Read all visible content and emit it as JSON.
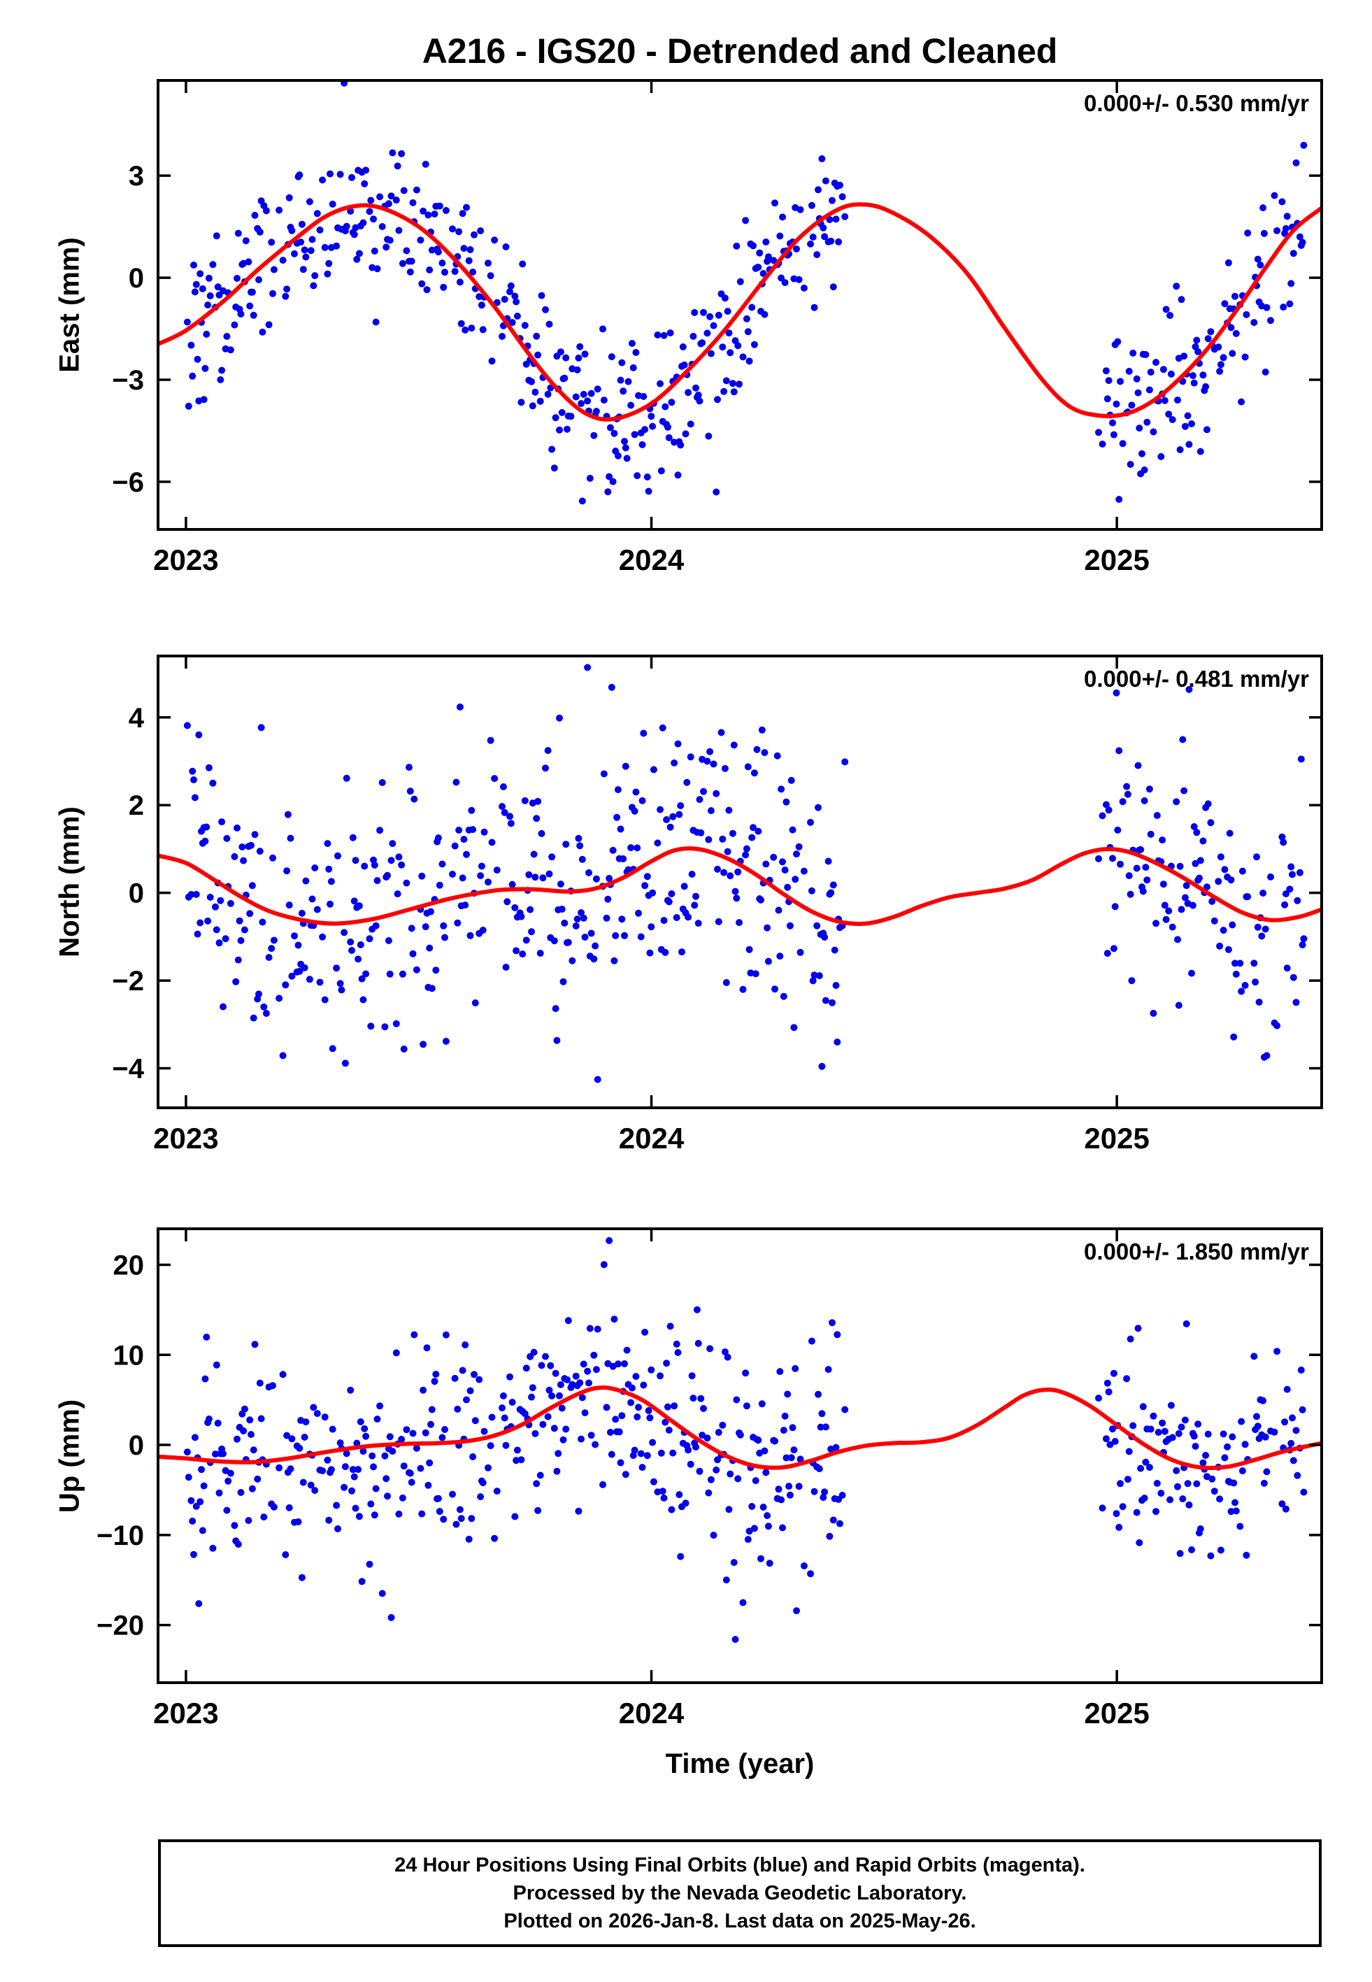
{
  "title": "A216 - IGS20 - Detrended and Cleaned",
  "xlabel": "Time (year)",
  "footer": {
    "line1": "24 Hour Positions Using Final Orbits (blue) and Rapid Orbits (magenta).",
    "line2": "Processed by the Nevada Geodetic Laboratory.",
    "line3": "Plotted on 2026-Jan-8. Last data on 2025-May-26."
  },
  "colors": {
    "points": "#0000ee",
    "curve": "#ff0000",
    "frame": "#000000",
    "background": "#ffffff"
  },
  "data_coverage": {
    "segments": [
      [
        2023.003,
        2024.42
      ],
      [
        2024.958,
        2025.402
      ]
    ],
    "step_days": 1,
    "keep_probability": 0.78,
    "seed": 7
  },
  "chart_data": [
    {
      "type": "scatter",
      "id": "east",
      "ylabel": "East (mm)",
      "annotation": "0.000+/- 0.530 mm/yr",
      "rate_mm_yr": 0.0,
      "rate_sigma_mm_yr": 0.53,
      "xlim": [
        2022.94,
        2025.44
      ],
      "ylim": [
        -7.4,
        5.8
      ],
      "xticks": [
        2023,
        2024,
        2025
      ],
      "yticks": [
        -6,
        -3,
        0,
        3
      ],
      "trend_curve": {
        "x": [
          2022.94,
          2023.0,
          2023.08,
          2023.16,
          2023.24,
          2023.3,
          2023.36,
          2023.42,
          2023.5,
          2023.58,
          2023.66,
          2023.74,
          2023.8,
          2023.86,
          2023.92,
          2024.0,
          2024.08,
          2024.16,
          2024.24,
          2024.32,
          2024.4,
          2024.46,
          2024.52,
          2024.6,
          2024.68,
          2024.76,
          2024.84,
          2024.9,
          2024.96,
          2025.02,
          2025.08,
          2025.14,
          2025.2,
          2025.26,
          2025.32,
          2025.38,
          2025.44
        ],
        "y": [
          -1.95,
          -1.55,
          -0.7,
          0.3,
          1.2,
          1.8,
          2.1,
          2.05,
          1.5,
          0.5,
          -0.8,
          -2.3,
          -3.3,
          -4.0,
          -4.15,
          -3.7,
          -2.7,
          -1.5,
          -0.1,
          1.2,
          2.0,
          2.15,
          1.9,
          1.2,
          0.1,
          -1.5,
          -3.0,
          -3.8,
          -4.05,
          -4.0,
          -3.6,
          -2.9,
          -2.0,
          -0.9,
          0.3,
          1.4,
          2.05
        ]
      },
      "scatter": {
        "sigma": 1.15,
        "seed": 101,
        "outlier_probability": 0.02,
        "outlier_scale": 1.9
      }
    },
    {
      "type": "scatter",
      "id": "north",
      "ylabel": "North (mm)",
      "annotation": "0.000+/- 0.481 mm/yr",
      "rate_mm_yr": 0.0,
      "rate_sigma_mm_yr": 0.481,
      "xlim": [
        2022.94,
        2025.44
      ],
      "ylim": [
        -4.9,
        5.4
      ],
      "xticks": [
        2023,
        2024,
        2025
      ],
      "yticks": [
        -4,
        -2,
        0,
        2,
        4
      ],
      "trend_curve": {
        "x": [
          2022.94,
          2023.0,
          2023.06,
          2023.12,
          2023.18,
          2023.25,
          2023.32,
          2023.4,
          2023.48,
          2023.56,
          2023.62,
          2023.68,
          2023.75,
          2023.82,
          2023.88,
          2023.94,
          2024.0,
          2024.05,
          2024.1,
          2024.16,
          2024.22,
          2024.28,
          2024.34,
          2024.4,
          2024.46,
          2024.52,
          2024.58,
          2024.64,
          2024.7,
          2024.76,
          2024.82,
          2024.88,
          2024.93,
          2024.98,
          2025.03,
          2025.09,
          2025.15,
          2025.21,
          2025.27,
          2025.33,
          2025.39,
          2025.44
        ],
        "y": [
          0.85,
          0.68,
          0.3,
          -0.1,
          -0.42,
          -0.62,
          -0.7,
          -0.6,
          -0.38,
          -0.15,
          -0.02,
          0.07,
          0.08,
          0.03,
          0.1,
          0.35,
          0.72,
          0.97,
          1.0,
          0.8,
          0.45,
          0.0,
          -0.4,
          -0.65,
          -0.7,
          -0.55,
          -0.3,
          -0.1,
          0.0,
          0.1,
          0.3,
          0.65,
          0.9,
          1.0,
          0.92,
          0.65,
          0.3,
          -0.1,
          -0.45,
          -0.62,
          -0.55,
          -0.38
        ]
      },
      "scatter": {
        "sigma": 1.6,
        "seed": 202,
        "outlier_probability": 0.02,
        "outlier_scale": 1.9
      }
    },
    {
      "type": "scatter",
      "id": "up",
      "ylabel": "Up (mm)",
      "annotation": "0.000+/- 1.850 mm/yr",
      "rate_mm_yr": 0.0,
      "rate_sigma_mm_yr": 1.85,
      "xlim": [
        2022.94,
        2025.44
      ],
      "ylim": [
        -26.4,
        24.0
      ],
      "xticks": [
        2023,
        2024,
        2025
      ],
      "yticks": [
        -20,
        -10,
        0,
        10,
        20
      ],
      "trend_curve": {
        "x": [
          2022.94,
          2023.0,
          2023.08,
          2023.15,
          2023.22,
          2023.3,
          2023.38,
          2023.46,
          2023.54,
          2023.6,
          2023.66,
          2023.72,
          2023.78,
          2023.84,
          2023.88,
          2023.92,
          2023.98,
          2024.04,
          2024.1,
          2024.16,
          2024.22,
          2024.28,
          2024.34,
          2024.4,
          2024.46,
          2024.52,
          2024.58,
          2024.64,
          2024.7,
          2024.76,
          2024.8,
          2024.84,
          2024.88,
          2024.94,
          2025.0,
          2025.06,
          2025.12,
          2025.18,
          2025.24,
          2025.3,
          2025.36,
          2025.44
        ],
        "y": [
          -1.3,
          -1.5,
          -1.85,
          -1.9,
          -1.5,
          -0.8,
          -0.2,
          0.1,
          0.2,
          0.4,
          1.0,
          2.2,
          4.0,
          5.6,
          6.3,
          6.2,
          5.0,
          2.8,
          0.6,
          -1.2,
          -2.3,
          -2.5,
          -1.8,
          -0.8,
          -0.1,
          0.2,
          0.3,
          0.8,
          2.2,
          4.2,
          5.5,
          6.1,
          5.9,
          4.4,
          2.2,
          0.0,
          -1.7,
          -2.5,
          -2.4,
          -1.6,
          -0.7,
          0.2
        ]
      },
      "scatter": {
        "sigma": 5.8,
        "seed": 303,
        "outlier_probability": 0.025,
        "outlier_scale": 2.0
      }
    }
  ]
}
